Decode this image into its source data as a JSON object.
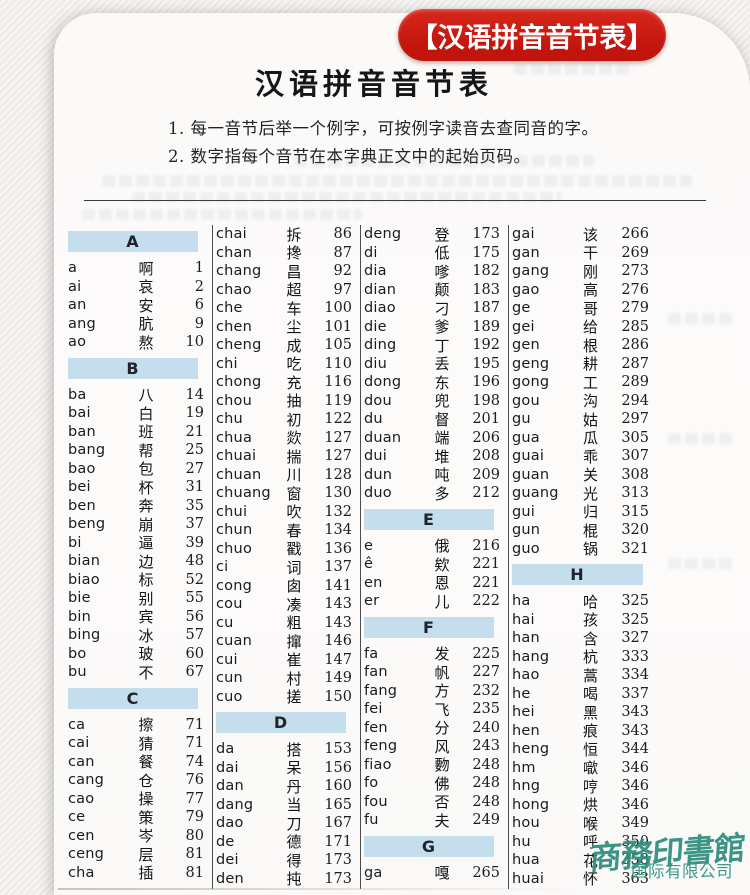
{
  "banner": {
    "label": "【汉语拼音音节表】"
  },
  "page": {
    "title": "汉语拼音音节表",
    "notes": [
      "1. 每一音节后举一个例字，可按例字读音去查同音的字。",
      "2. 数字指每个音节在本字典正文中的起始页码。"
    ]
  },
  "watermark": {
    "line1": "商務印書館",
    "line2": "国际有限公司"
  },
  "colors": {
    "banner_red": "#c0140c",
    "section_blue": "#c5deee",
    "watermark_teal": "#2d8d7c"
  },
  "table": {
    "columns": [
      {
        "items": [
          "A",
          [
            "a",
            "啊",
            "1"
          ],
          [
            "ai",
            "哀",
            "2"
          ],
          [
            "an",
            "安",
            "6"
          ],
          [
            "ang",
            "肮",
            "9"
          ],
          [
            "ao",
            "熬",
            "10"
          ],
          "B",
          [
            "ba",
            "八",
            "14"
          ],
          [
            "bai",
            "白",
            "19"
          ],
          [
            "ban",
            "班",
            "21"
          ],
          [
            "bang",
            "帮",
            "25"
          ],
          [
            "bao",
            "包",
            "27"
          ],
          [
            "bei",
            "杯",
            "31"
          ],
          [
            "ben",
            "奔",
            "35"
          ],
          [
            "beng",
            "崩",
            "37"
          ],
          [
            "bi",
            "逼",
            "39"
          ],
          [
            "bian",
            "边",
            "48"
          ],
          [
            "biao",
            "标",
            "52"
          ],
          [
            "bie",
            "别",
            "55"
          ],
          [
            "bin",
            "宾",
            "56"
          ],
          [
            "bing",
            "冰",
            "57"
          ],
          [
            "bo",
            "玻",
            "60"
          ],
          [
            "bu",
            "不",
            "67"
          ],
          "C",
          [
            "ca",
            "擦",
            "71"
          ],
          [
            "cai",
            "猜",
            "71"
          ],
          [
            "can",
            "餐",
            "74"
          ],
          [
            "cang",
            "仓",
            "76"
          ],
          [
            "cao",
            "操",
            "77"
          ],
          [
            "ce",
            "策",
            "79"
          ],
          [
            "cen",
            "岑",
            "80"
          ],
          [
            "ceng",
            "层",
            "81"
          ],
          [
            "cha",
            "插",
            "81"
          ]
        ]
      },
      {
        "items": [
          [
            "chai",
            "拆",
            "86"
          ],
          [
            "chan",
            "搀",
            "87"
          ],
          [
            "chang",
            "昌",
            "92"
          ],
          [
            "chao",
            "超",
            "97"
          ],
          [
            "che",
            "车",
            "100"
          ],
          [
            "chen",
            "尘",
            "101"
          ],
          [
            "cheng",
            "成",
            "105"
          ],
          [
            "chi",
            "吃",
            "110"
          ],
          [
            "chong",
            "充",
            "116"
          ],
          [
            "chou",
            "抽",
            "119"
          ],
          [
            "chu",
            "初",
            "122"
          ],
          [
            "chua",
            "欻",
            "127"
          ],
          [
            "chuai",
            "揣",
            "127"
          ],
          [
            "chuan",
            "川",
            "128"
          ],
          [
            "chuang",
            "窗",
            "130"
          ],
          [
            "chui",
            "吹",
            "132"
          ],
          [
            "chun",
            "春",
            "134"
          ],
          [
            "chuo",
            "戳",
            "136"
          ],
          [
            "ci",
            "词",
            "137"
          ],
          [
            "cong",
            "囱",
            "141"
          ],
          [
            "cou",
            "凑",
            "143"
          ],
          [
            "cu",
            "粗",
            "143"
          ],
          [
            "cuan",
            "撺",
            "146"
          ],
          [
            "cui",
            "崔",
            "147"
          ],
          [
            "cun",
            "村",
            "149"
          ],
          [
            "cuo",
            "搓",
            "150"
          ],
          "D",
          [
            "da",
            "搭",
            "153"
          ],
          [
            "dai",
            "呆",
            "156"
          ],
          [
            "dan",
            "丹",
            "160"
          ],
          [
            "dang",
            "当",
            "165"
          ],
          [
            "dao",
            "刀",
            "167"
          ],
          [
            "de",
            "德",
            "171"
          ],
          [
            "dei",
            "得",
            "173"
          ],
          [
            "den",
            "扽",
            "173"
          ]
        ]
      },
      {
        "items": [
          [
            "deng",
            "登",
            "173"
          ],
          [
            "di",
            "低",
            "175"
          ],
          [
            "dia",
            "嗲",
            "182"
          ],
          [
            "dian",
            "颠",
            "183"
          ],
          [
            "diao",
            "刁",
            "187"
          ],
          [
            "die",
            "爹",
            "189"
          ],
          [
            "ding",
            "丁",
            "192"
          ],
          [
            "diu",
            "丢",
            "195"
          ],
          [
            "dong",
            "东",
            "196"
          ],
          [
            "dou",
            "兜",
            "198"
          ],
          [
            "du",
            "督",
            "201"
          ],
          [
            "duan",
            "端",
            "206"
          ],
          [
            "dui",
            "堆",
            "208"
          ],
          [
            "dun",
            "吨",
            "209"
          ],
          [
            "duo",
            "多",
            "212"
          ],
          "E",
          [
            "e",
            "俄",
            "216"
          ],
          [
            "ê",
            "欸",
            "221"
          ],
          [
            "en",
            "恩",
            "221"
          ],
          [
            "er",
            "儿",
            "222"
          ],
          "F",
          [
            "fa",
            "发",
            "225"
          ],
          [
            "fan",
            "帆",
            "227"
          ],
          [
            "fang",
            "方",
            "232"
          ],
          [
            "fei",
            "飞",
            "235"
          ],
          [
            "fen",
            "分",
            "240"
          ],
          [
            "feng",
            "风",
            "243"
          ],
          [
            "fiao",
            "覅",
            "248"
          ],
          [
            "fo",
            "佛",
            "248"
          ],
          [
            "fou",
            "否",
            "248"
          ],
          [
            "fu",
            "夫",
            "249"
          ],
          "G",
          [
            "ga",
            "嘎",
            "265"
          ]
        ]
      },
      {
        "items": [
          [
            "gai",
            "该",
            "266"
          ],
          [
            "gan",
            "干",
            "269"
          ],
          [
            "gang",
            "刚",
            "273"
          ],
          [
            "gao",
            "高",
            "276"
          ],
          [
            "ge",
            "哥",
            "279"
          ],
          [
            "gei",
            "给",
            "285"
          ],
          [
            "gen",
            "根",
            "286"
          ],
          [
            "geng",
            "耕",
            "287"
          ],
          [
            "gong",
            "工",
            "289"
          ],
          [
            "gou",
            "沟",
            "294"
          ],
          [
            "gu",
            "姑",
            "297"
          ],
          [
            "gua",
            "瓜",
            "305"
          ],
          [
            "guai",
            "乖",
            "307"
          ],
          [
            "guan",
            "关",
            "308"
          ],
          [
            "guang",
            "光",
            "313"
          ],
          [
            "gui",
            "归",
            "315"
          ],
          [
            "gun",
            "棍",
            "320"
          ],
          [
            "guo",
            "锅",
            "321"
          ],
          "H",
          [
            "ha",
            "哈",
            "325"
          ],
          [
            "hai",
            "孩",
            "325"
          ],
          [
            "han",
            "含",
            "327"
          ],
          [
            "hang",
            "杭",
            "333"
          ],
          [
            "hao",
            "蒿",
            "334"
          ],
          [
            "he",
            "喝",
            "337"
          ],
          [
            "hei",
            "黑",
            "343"
          ],
          [
            "hen",
            "痕",
            "343"
          ],
          [
            "heng",
            "恒",
            "344"
          ],
          [
            "hm",
            "噷",
            "346"
          ],
          [
            "hng",
            "哼",
            "346"
          ],
          [
            "hong",
            "烘",
            "346"
          ],
          [
            "hou",
            "喉",
            "349"
          ],
          [
            "hu",
            "呼",
            "350"
          ],
          [
            "hua",
            "花",
            "358"
          ],
          [
            "huai",
            "怀",
            "363"
          ]
        ]
      }
    ]
  }
}
